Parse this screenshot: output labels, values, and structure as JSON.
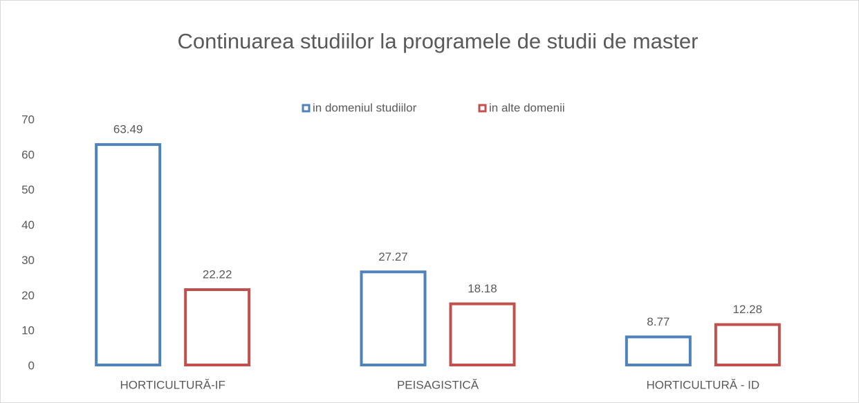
{
  "chart_data": {
    "type": "bar",
    "title": "Continuarea studiilor la programele de studii de master",
    "categories": [
      "HORTICULTURĂ-IF",
      "PEISAGISTICĂ",
      "HORTICULTURĂ - ID"
    ],
    "series": [
      {
        "name": "in domeniul studiilor",
        "color": "#4f81bd",
        "values": [
          63.49,
          27.27,
          8.77
        ]
      },
      {
        "name": "in alte domenii",
        "color": "#c0504d",
        "values": [
          22.22,
          18.18,
          12.28
        ]
      }
    ],
    "ylim": [
      0,
      70
    ],
    "yticks": [
      0,
      10,
      20,
      30,
      40,
      50,
      60,
      70
    ],
    "grid": false,
    "legend": "top"
  }
}
